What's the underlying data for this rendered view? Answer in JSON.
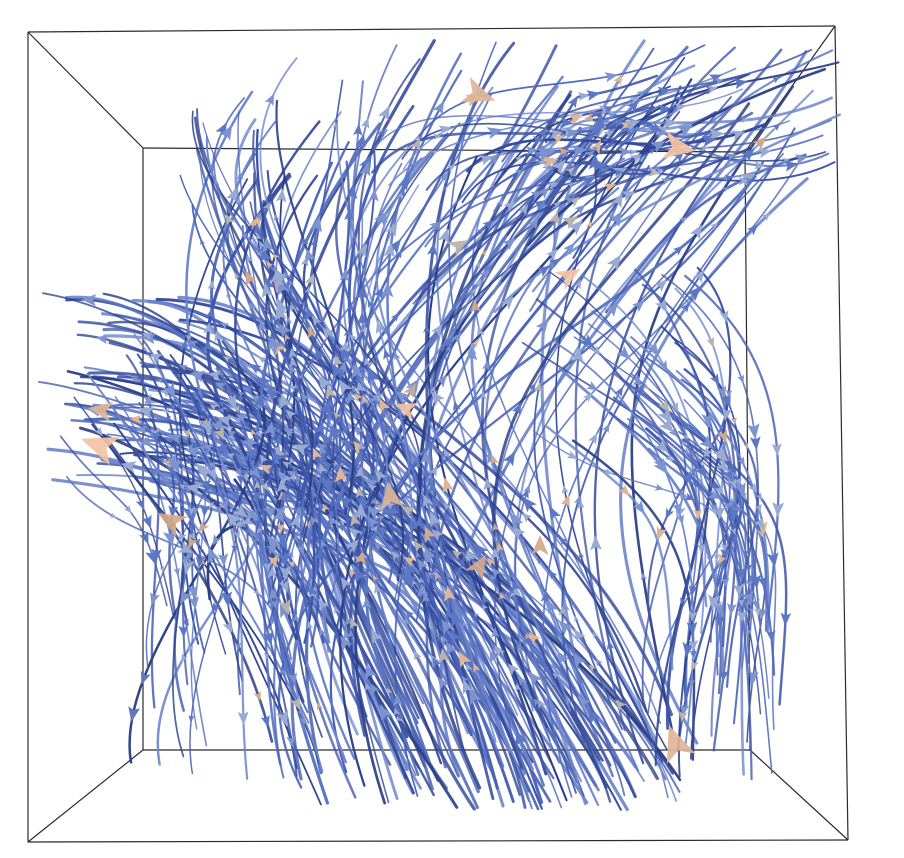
{
  "scene": {
    "background_color": "#ffffff",
    "box_edge_color": "#2b2b2b",
    "streamline_colors": [
      "#2a3f86",
      "#34499a",
      "#3f56a8",
      "#4a63b5",
      "#5a74c2",
      "#6d86cc"
    ],
    "glyph_colors": [
      "#5c78c4",
      "#7d94cf",
      "#9aabd3",
      "#b8b4ad",
      "#d2a88c",
      "#e0b596"
    ],
    "highlight_color": "#f3c3a3"
  }
}
